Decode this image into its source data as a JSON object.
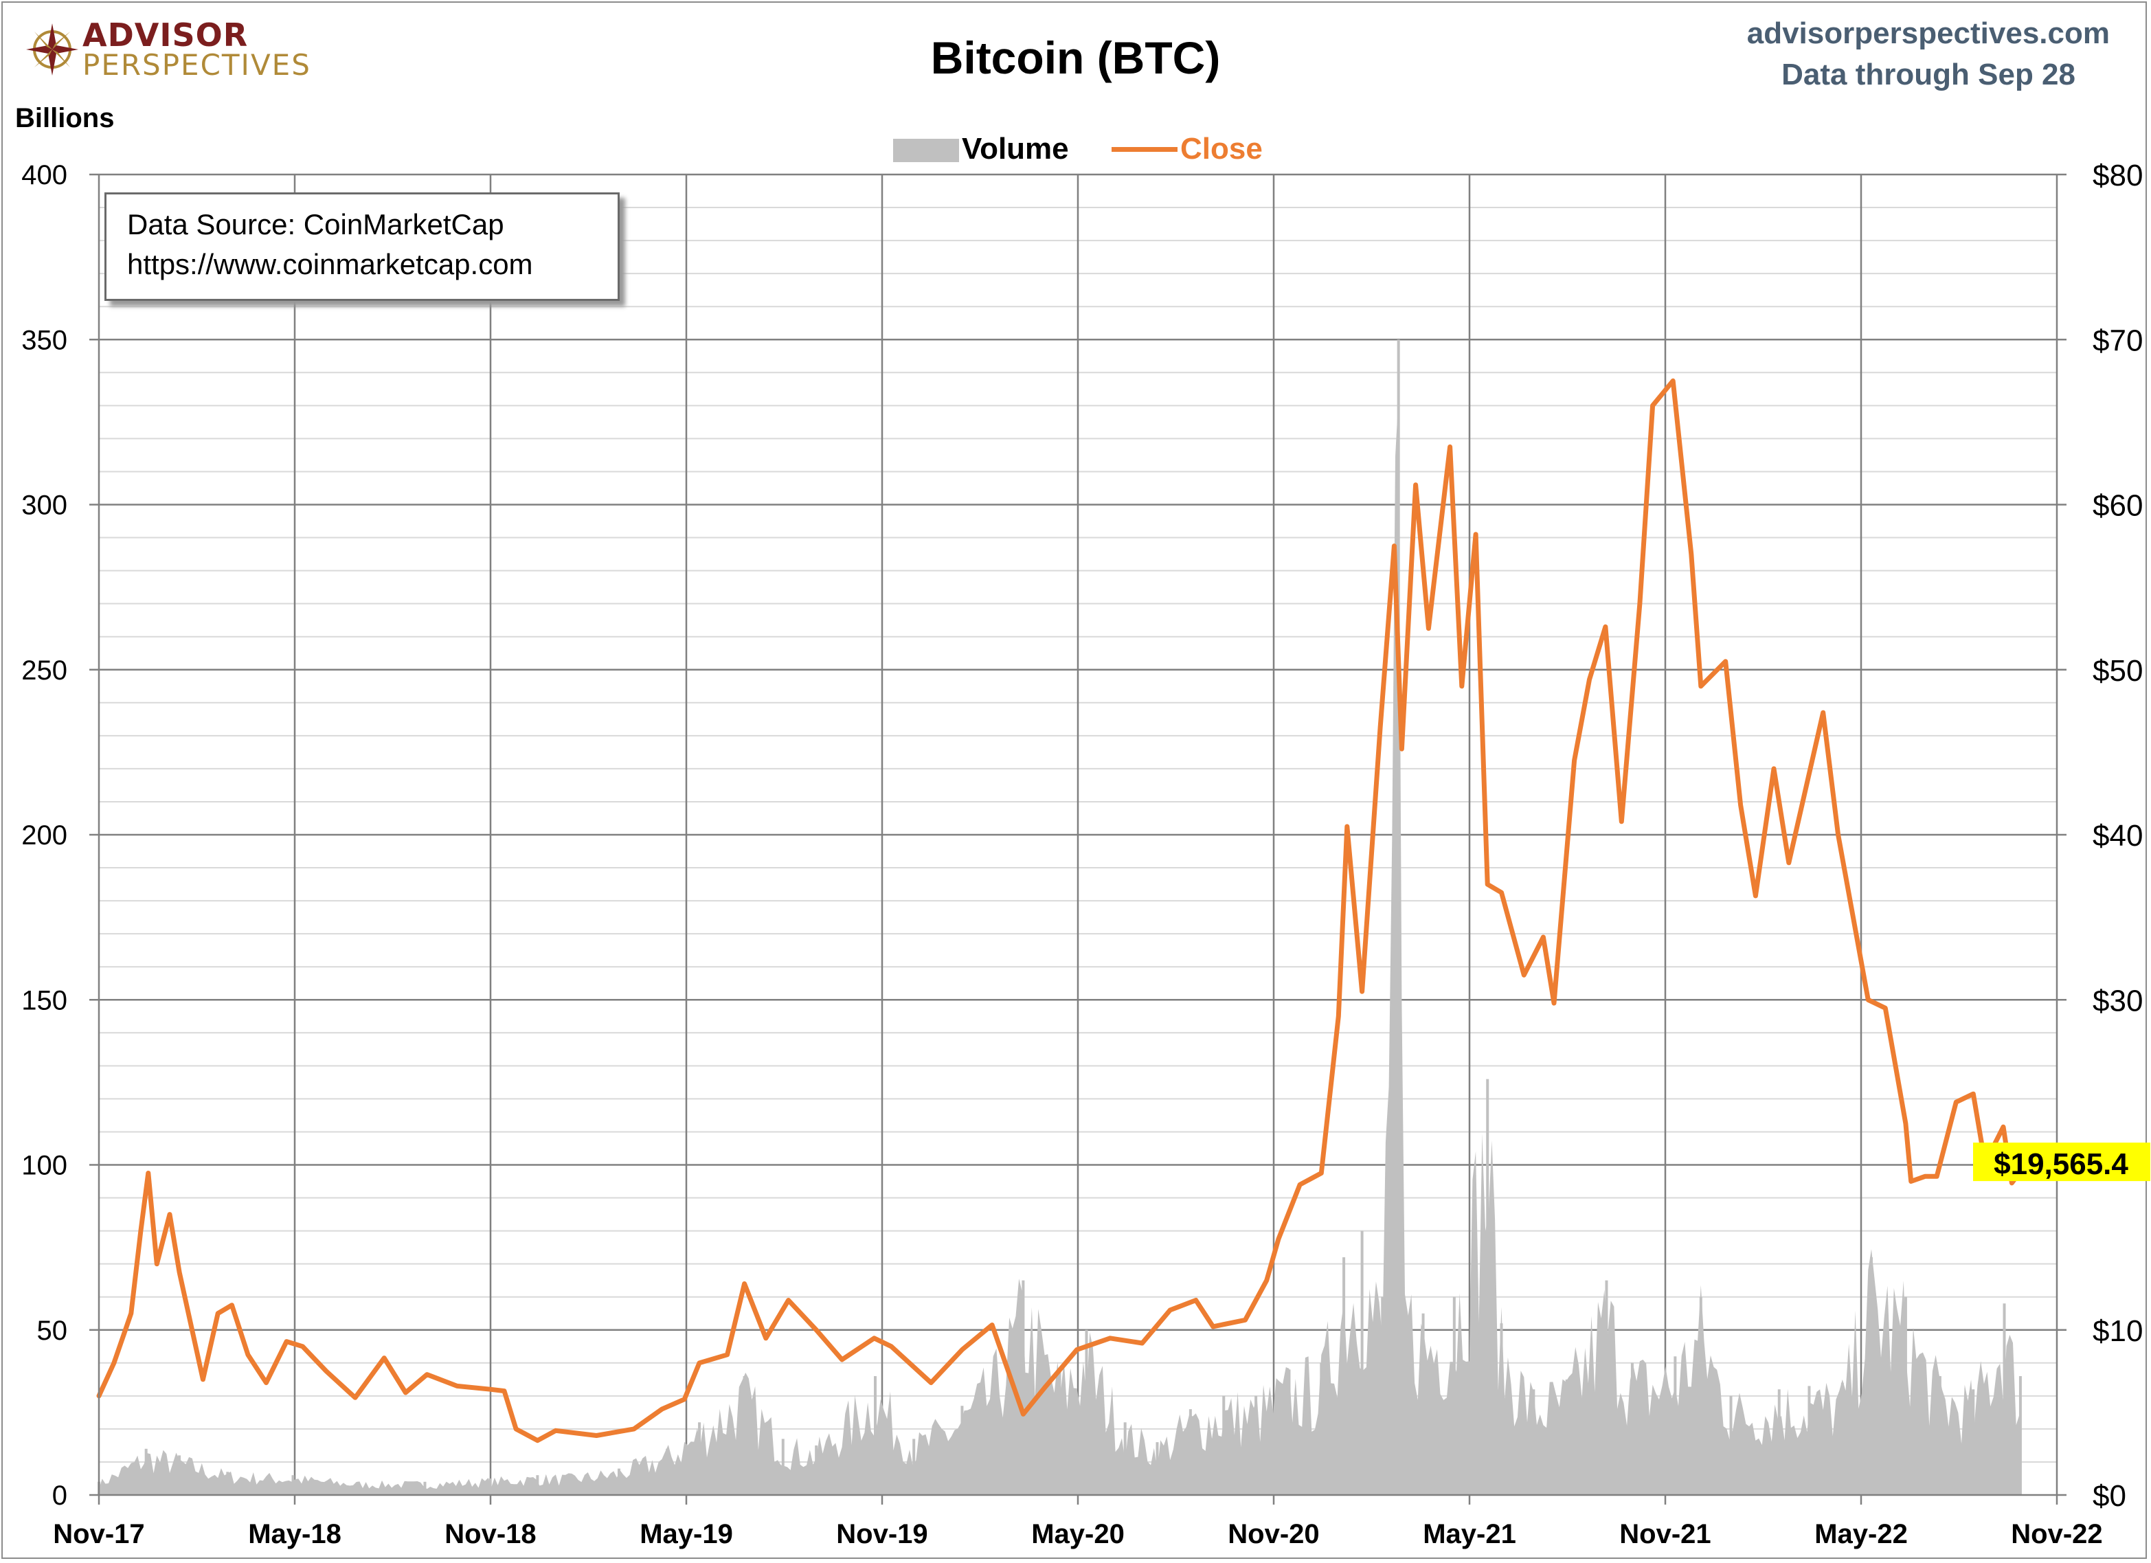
{
  "header": {
    "logo_top": "ADVISOR",
    "logo_bottom": "PERSPECTIVES",
    "title": "Bitcoin (BTC)",
    "site": "advisorperspectives.com",
    "data_through": "Data through Sep 28"
  },
  "source_box": {
    "line1": "Data Source: CoinMarketCap",
    "line2": "https://www.coinmarketcap.com"
  },
  "colors": {
    "volume": "#c0c0c0",
    "close": "#ed7d31",
    "grid_major": "#808080",
    "grid_minor": "#d9d9d9",
    "highlight": "#ffff00",
    "site_text": "#4a5e72"
  },
  "chart_data": {
    "type": "area",
    "title": "Bitcoin (BTC)",
    "ylabel": "Billions",
    "legend": [
      "Volume",
      "Close"
    ],
    "legend_position": "top-center",
    "grid": true,
    "x_tick_labels": [
      "Nov-17",
      "May-18",
      "Nov-18",
      "May-19",
      "Nov-19",
      "May-20",
      "Nov-20",
      "May-21",
      "Nov-21",
      "May-22",
      "Nov-22"
    ],
    "y_left": {
      "label": "Billions",
      "ylim": [
        0,
        400
      ],
      "ticks": [
        "0",
        "50",
        "100",
        "150",
        "200",
        "250",
        "300",
        "350",
        "400"
      ]
    },
    "y_right": {
      "ylim": [
        0,
        80
      ],
      "ticks": [
        "$0",
        "$10",
        "$20",
        "$30",
        "$40",
        "$50",
        "$60",
        "$70",
        "$80"
      ]
    },
    "x_range": [
      "2017-11-01",
      "2022-11-01"
    ],
    "last_value_label": "$19,565.4",
    "series": [
      {
        "name": "Close",
        "axis": "right",
        "unit": "thousand USD",
        "points": [
          [
            "2017-11-01",
            6.0
          ],
          [
            "2017-11-15",
            8.0
          ],
          [
            "2017-12-01",
            11.0
          ],
          [
            "2017-12-10",
            16.0
          ],
          [
            "2017-12-17",
            19.5
          ],
          [
            "2017-12-25",
            14.0
          ],
          [
            "2018-01-06",
            17.0
          ],
          [
            "2018-01-15",
            13.5
          ],
          [
            "2018-02-06",
            7.0
          ],
          [
            "2018-02-20",
            11.0
          ],
          [
            "2018-03-05",
            11.5
          ],
          [
            "2018-03-20",
            8.5
          ],
          [
            "2018-04-06",
            6.8
          ],
          [
            "2018-04-25",
            9.3
          ],
          [
            "2018-05-10",
            9.0
          ],
          [
            "2018-06-01",
            7.5
          ],
          [
            "2018-06-28",
            5.9
          ],
          [
            "2018-07-25",
            8.3
          ],
          [
            "2018-08-14",
            6.2
          ],
          [
            "2018-09-03",
            7.3
          ],
          [
            "2018-10-01",
            6.6
          ],
          [
            "2018-11-01",
            6.4
          ],
          [
            "2018-11-14",
            6.3
          ],
          [
            "2018-11-25",
            4.0
          ],
          [
            "2018-12-15",
            3.3
          ],
          [
            "2019-01-01",
            3.9
          ],
          [
            "2019-02-08",
            3.6
          ],
          [
            "2019-03-15",
            4.0
          ],
          [
            "2019-04-10",
            5.2
          ],
          [
            "2019-05-01",
            5.8
          ],
          [
            "2019-05-15",
            8.0
          ],
          [
            "2019-06-10",
            8.5
          ],
          [
            "2019-06-26",
            12.8
          ],
          [
            "2019-07-16",
            9.5
          ],
          [
            "2019-08-06",
            11.8
          ],
          [
            "2019-09-01",
            10.0
          ],
          [
            "2019-09-25",
            8.2
          ],
          [
            "2019-10-25",
            9.5
          ],
          [
            "2019-11-10",
            9.0
          ],
          [
            "2019-12-17",
            6.8
          ],
          [
            "2020-01-15",
            8.8
          ],
          [
            "2020-02-12",
            10.3
          ],
          [
            "2020-03-12",
            4.9
          ],
          [
            "2020-04-01",
            6.5
          ],
          [
            "2020-05-01",
            8.8
          ],
          [
            "2020-06-01",
            9.5
          ],
          [
            "2020-07-01",
            9.2
          ],
          [
            "2020-07-27",
            11.2
          ],
          [
            "2020-08-20",
            11.8
          ],
          [
            "2020-09-05",
            10.2
          ],
          [
            "2020-10-05",
            10.6
          ],
          [
            "2020-10-25",
            13.0
          ],
          [
            "2020-11-05",
            15.5
          ],
          [
            "2020-11-25",
            18.8
          ],
          [
            "2020-12-15",
            19.5
          ],
          [
            "2020-12-31",
            29.0
          ],
          [
            "2021-01-08",
            40.5
          ],
          [
            "2021-01-22",
            30.5
          ],
          [
            "2021-02-08",
            46.5
          ],
          [
            "2021-02-21",
            57.5
          ],
          [
            "2021-02-28",
            45.2
          ],
          [
            "2021-03-13",
            61.2
          ],
          [
            "2021-03-25",
            52.5
          ],
          [
            "2021-04-14",
            63.5
          ],
          [
            "2021-04-25",
            49.0
          ],
          [
            "2021-05-08",
            58.2
          ],
          [
            "2021-05-19",
            37.0
          ],
          [
            "2021-06-01",
            36.5
          ],
          [
            "2021-06-22",
            31.5
          ],
          [
            "2021-07-10",
            33.8
          ],
          [
            "2021-07-20",
            29.8
          ],
          [
            "2021-08-08",
            44.5
          ],
          [
            "2021-08-22",
            49.4
          ],
          [
            "2021-09-06",
            52.6
          ],
          [
            "2021-09-21",
            40.8
          ],
          [
            "2021-10-08",
            54.0
          ],
          [
            "2021-10-20",
            66.0
          ],
          [
            "2021-11-08",
            67.5
          ],
          [
            "2021-11-25",
            57.0
          ],
          [
            "2021-12-04",
            49.0
          ],
          [
            "2021-12-27",
            50.5
          ],
          [
            "2022-01-10",
            41.8
          ],
          [
            "2022-01-24",
            36.3
          ],
          [
            "2022-02-10",
            44.0
          ],
          [
            "2022-02-24",
            38.3
          ],
          [
            "2022-03-28",
            47.4
          ],
          [
            "2022-04-11",
            40.0
          ],
          [
            "2022-05-09",
            30.0
          ],
          [
            "2022-05-25",
            29.5
          ],
          [
            "2022-06-13",
            22.5
          ],
          [
            "2022-06-18",
            19.0
          ],
          [
            "2022-07-01",
            19.3
          ],
          [
            "2022-07-12",
            19.3
          ],
          [
            "2022-07-30",
            23.8
          ],
          [
            "2022-08-15",
            24.3
          ],
          [
            "2022-08-26",
            20.1
          ],
          [
            "2022-09-12",
            22.3
          ],
          [
            "2022-09-20",
            18.9
          ],
          [
            "2022-09-28",
            19.6
          ]
        ]
      },
      {
        "name": "Volume",
        "axis": "left",
        "unit": "billion USD",
        "points": [
          [
            "2017-11-01",
            4
          ],
          [
            "2017-12-15",
            14
          ],
          [
            "2018-01-15",
            12
          ],
          [
            "2018-03-01",
            7
          ],
          [
            "2018-05-01",
            6
          ],
          [
            "2018-07-01",
            4
          ],
          [
            "2018-09-01",
            4
          ],
          [
            "2018-11-01",
            5
          ],
          [
            "2018-12-15",
            6
          ],
          [
            "2019-01-15",
            6
          ],
          [
            "2019-03-01",
            8
          ],
          [
            "2019-04-15",
            14
          ],
          [
            "2019-05-15",
            22
          ],
          [
            "2019-06-26",
            36
          ],
          [
            "2019-08-01",
            17
          ],
          [
            "2019-09-01",
            15
          ],
          [
            "2019-10-26",
            36
          ],
          [
            "2019-12-01",
            17
          ],
          [
            "2020-01-15",
            27
          ],
          [
            "2020-02-15",
            40
          ],
          [
            "2020-03-12",
            65
          ],
          [
            "2020-04-15",
            38
          ],
          [
            "2020-05-10",
            50
          ],
          [
            "2020-06-15",
            22
          ],
          [
            "2020-07-15",
            16
          ],
          [
            "2020-08-15",
            26
          ],
          [
            "2020-09-15",
            30
          ],
          [
            "2020-10-15",
            30
          ],
          [
            "2020-11-15",
            38
          ],
          [
            "2020-12-15",
            40
          ],
          [
            "2021-01-05",
            72
          ],
          [
            "2021-01-22",
            80
          ],
          [
            "2021-02-10",
            60
          ],
          [
            "2021-02-25",
            350
          ],
          [
            "2021-03-01",
            68
          ],
          [
            "2021-03-20",
            55
          ],
          [
            "2021-04-18",
            60
          ],
          [
            "2021-05-19",
            126
          ],
          [
            "2021-06-01",
            52
          ],
          [
            "2021-07-01",
            32
          ],
          [
            "2021-08-01",
            35
          ],
          [
            "2021-09-07",
            65
          ],
          [
            "2021-10-01",
            40
          ],
          [
            "2021-11-10",
            42
          ],
          [
            "2021-12-04",
            60
          ],
          [
            "2022-01-01",
            30
          ],
          [
            "2022-02-15",
            32
          ],
          [
            "2022-03-15",
            33
          ],
          [
            "2022-04-15",
            34
          ],
          [
            "2022-05-12",
            72
          ],
          [
            "2022-06-13",
            60
          ],
          [
            "2022-07-15",
            36
          ],
          [
            "2022-08-15",
            32
          ],
          [
            "2022-09-13",
            58
          ],
          [
            "2022-09-28",
            36
          ]
        ]
      }
    ]
  }
}
